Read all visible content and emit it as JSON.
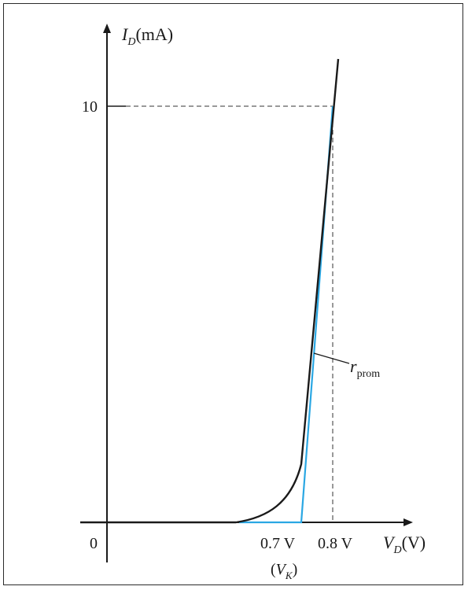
{
  "figure": {
    "y_axis_label": {
      "main": "I",
      "sub": "D",
      "unit": "(mA)"
    },
    "x_axis_label": {
      "main": "V",
      "sub": "D",
      "unit": "(V)"
    },
    "origin_label": "0",
    "y_tick_label": "10",
    "x_tick_labels": {
      "vk": "0.7 V",
      "v08": "0.8 V"
    },
    "vk_label": {
      "open": "(",
      "main": "V",
      "sub": "K",
      "close": ")"
    },
    "resistance_label": {
      "main": "r",
      "sub": "prom"
    },
    "colors": {
      "curve": "#1a1a1a",
      "tangent": "#2aa7e3",
      "axis": "#1a1a1a",
      "dashed": "#333333"
    }
  }
}
